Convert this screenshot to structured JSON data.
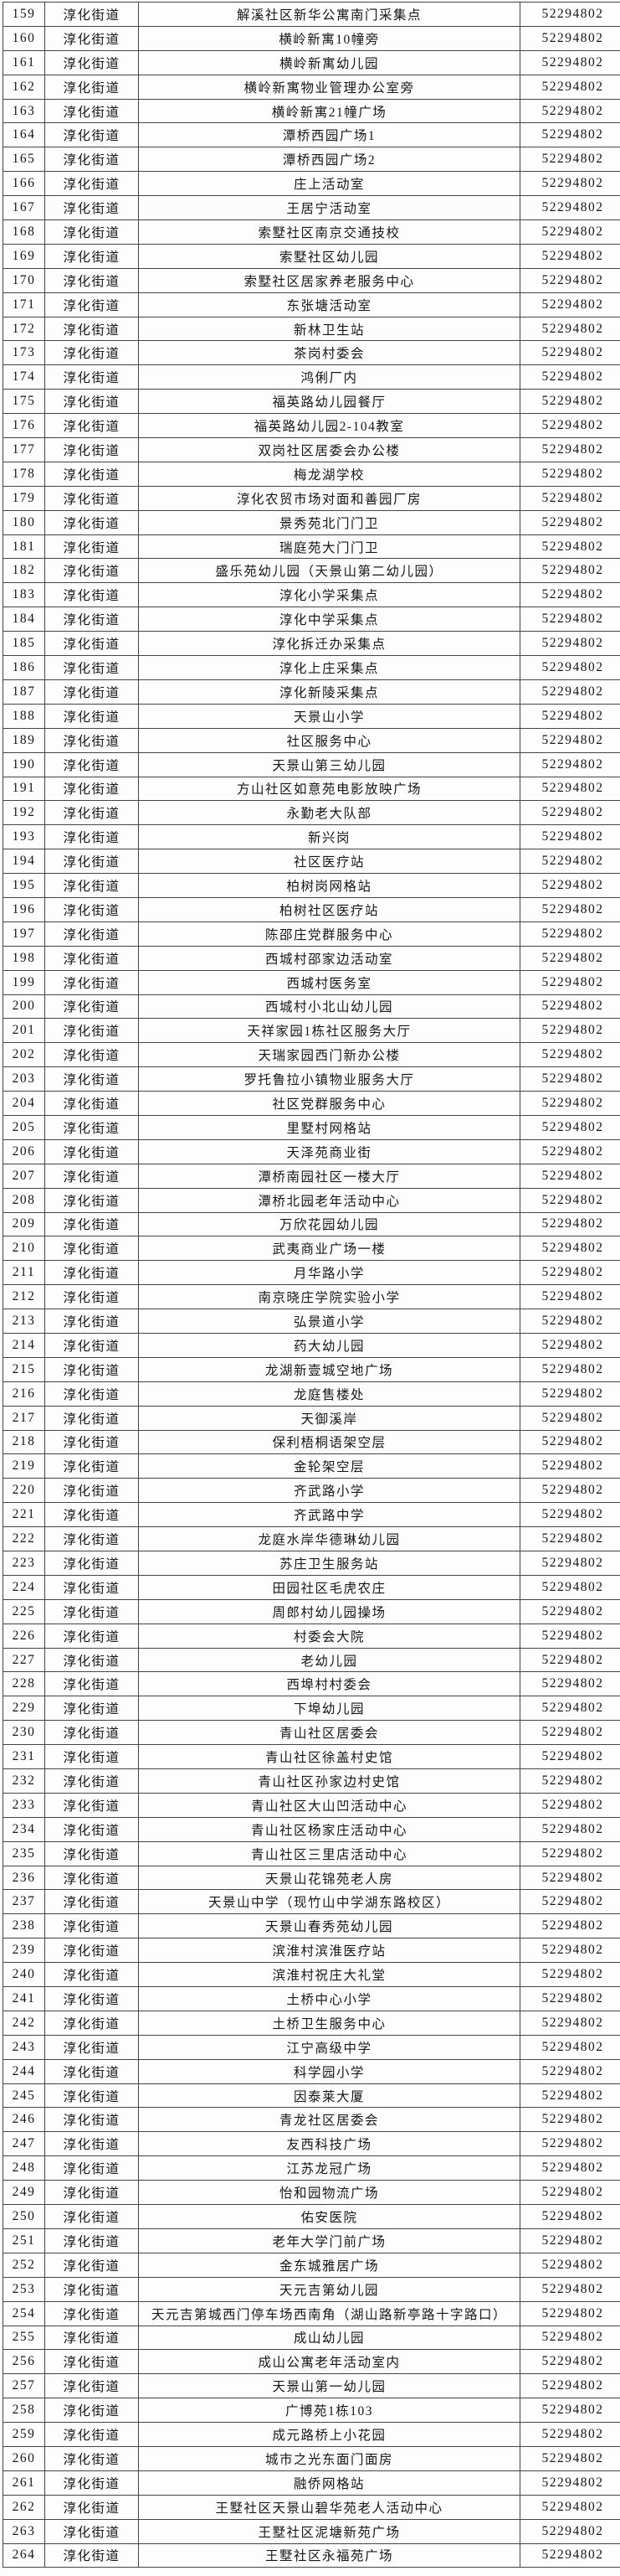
{
  "table": {
    "rows": [
      [
        "159",
        "淳化街道",
        "解溪社区新华公寓南门采集点",
        "52294802"
      ],
      [
        "160",
        "淳化街道",
        "横岭新寓10幢旁",
        "52294802"
      ],
      [
        "161",
        "淳化街道",
        "横岭新寓幼儿园",
        "52294802"
      ],
      [
        "162",
        "淳化街道",
        "横岭新寓物业管理办公室旁",
        "52294802"
      ],
      [
        "163",
        "淳化街道",
        "横岭新寓21幢广场",
        "52294802"
      ],
      [
        "164",
        "淳化街道",
        "潭桥西园广场1",
        "52294802"
      ],
      [
        "165",
        "淳化街道",
        "潭桥西园广场2",
        "52294802"
      ],
      [
        "166",
        "淳化街道",
        "庄上活动室",
        "52294802"
      ],
      [
        "167",
        "淳化街道",
        "王居宁活动室",
        "52294802"
      ],
      [
        "168",
        "淳化街道",
        "索墅社区南京交通技校",
        "52294802"
      ],
      [
        "169",
        "淳化街道",
        "索墅社区幼儿园",
        "52294802"
      ],
      [
        "170",
        "淳化街道",
        "索墅社区居家养老服务中心",
        "52294802"
      ],
      [
        "171",
        "淳化街道",
        "东张塘活动室",
        "52294802"
      ],
      [
        "172",
        "淳化街道",
        "新林卫生站",
        "52294802"
      ],
      [
        "173",
        "淳化街道",
        "茶岗村委会",
        "52294802"
      ],
      [
        "174",
        "淳化街道",
        "鸿俐厂内",
        "52294802"
      ],
      [
        "175",
        "淳化街道",
        "福英路幼儿园餐厅",
        "52294802"
      ],
      [
        "176",
        "淳化街道",
        "福英路幼儿园2-104教室",
        "52294802"
      ],
      [
        "177",
        "淳化街道",
        "双岗社区居委会办公楼",
        "52294802"
      ],
      [
        "178",
        "淳化街道",
        "梅龙湖学校",
        "52294802"
      ],
      [
        "179",
        "淳化街道",
        "淳化农贸市场对面和善园厂房",
        "52294802"
      ],
      [
        "180",
        "淳化街道",
        "景秀苑北门门卫",
        "52294802"
      ],
      [
        "181",
        "淳化街道",
        "瑞庭苑大门门卫",
        "52294802"
      ],
      [
        "182",
        "淳化街道",
        "盛乐苑幼儿园（天景山第二幼儿园）",
        "52294802"
      ],
      [
        "183",
        "淳化街道",
        "淳化小学采集点",
        "52294802"
      ],
      [
        "184",
        "淳化街道",
        "淳化中学采集点",
        "52294802"
      ],
      [
        "185",
        "淳化街道",
        "淳化拆迁办采集点",
        "52294802"
      ],
      [
        "186",
        "淳化街道",
        "淳化上庄采集点",
        "52294802"
      ],
      [
        "187",
        "淳化街道",
        "淳化新陵采集点",
        "52294802"
      ],
      [
        "188",
        "淳化街道",
        "天景山小学",
        "52294802"
      ],
      [
        "189",
        "淳化街道",
        "社区服务中心",
        "52294802"
      ],
      [
        "190",
        "淳化街道",
        "天景山第三幼儿园",
        "52294802"
      ],
      [
        "191",
        "淳化街道",
        "方山社区如意苑电影放映广场",
        "52294802"
      ],
      [
        "192",
        "淳化街道",
        "永勤老大队部",
        "52294802"
      ],
      [
        "193",
        "淳化街道",
        "新兴岗",
        "52294802"
      ],
      [
        "194",
        "淳化街道",
        "社区医疗站",
        "52294802"
      ],
      [
        "195",
        "淳化街道",
        "柏树岗网格站",
        "52294802"
      ],
      [
        "196",
        "淳化街道",
        "柏树社区医疗站",
        "52294802"
      ],
      [
        "197",
        "淳化街道",
        "陈邵庄党群服务中心",
        "52294802"
      ],
      [
        "198",
        "淳化街道",
        "西城村邵家边活动室",
        "52294802"
      ],
      [
        "199",
        "淳化街道",
        "西城村医务室",
        "52294802"
      ],
      [
        "200",
        "淳化街道",
        "西城村小北山幼儿园",
        "52294802"
      ],
      [
        "201",
        "淳化街道",
        "天祥家园1栋社区服务大厅",
        "52294802"
      ],
      [
        "202",
        "淳化街道",
        "天瑞家园西门新办公楼",
        "52294802"
      ],
      [
        "203",
        "淳化街道",
        "罗托鲁拉小镇物业服务大厅",
        "52294802"
      ],
      [
        "204",
        "淳化街道",
        "社区党群服务中心",
        "52294802"
      ],
      [
        "205",
        "淳化街道",
        "里墅村网格站",
        "52294802"
      ],
      [
        "206",
        "淳化街道",
        "天泽苑商业街",
        "52294802"
      ],
      [
        "207",
        "淳化街道",
        "潭桥南园社区一楼大厅",
        "52294802"
      ],
      [
        "208",
        "淳化街道",
        "潭桥北园老年活动中心",
        "52294802"
      ],
      [
        "209",
        "淳化街道",
        "万欣花园幼儿园",
        "52294802"
      ],
      [
        "210",
        "淳化街道",
        "武夷商业广场一楼",
        "52294802"
      ],
      [
        "211",
        "淳化街道",
        "月华路小学",
        "52294802"
      ],
      [
        "212",
        "淳化街道",
        "南京晓庄学院实验小学",
        "52294802"
      ],
      [
        "213",
        "淳化街道",
        "弘景道小学",
        "52294802"
      ],
      [
        "214",
        "淳化街道",
        "药大幼儿园",
        "52294802"
      ],
      [
        "215",
        "淳化街道",
        "龙湖新壹城空地广场",
        "52294802"
      ],
      [
        "216",
        "淳化街道",
        "龙庭售楼处",
        "52294802"
      ],
      [
        "217",
        "淳化街道",
        "天御溪岸",
        "52294802"
      ],
      [
        "218",
        "淳化街道",
        "保利梧桐语架空层",
        "52294802"
      ],
      [
        "219",
        "淳化街道",
        "金轮架空层",
        "52294802"
      ],
      [
        "220",
        "淳化街道",
        "齐武路小学",
        "52294802"
      ],
      [
        "221",
        "淳化街道",
        "齐武路中学",
        "52294802"
      ],
      [
        "222",
        "淳化街道",
        "龙庭水岸华德琳幼儿园",
        "52294802"
      ],
      [
        "223",
        "淳化街道",
        "苏庄卫生服务站",
        "52294802"
      ],
      [
        "224",
        "淳化街道",
        "田园社区毛虎农庄",
        "52294802"
      ],
      [
        "225",
        "淳化街道",
        "周郎村幼儿园操场",
        "52294802"
      ],
      [
        "226",
        "淳化街道",
        "村委会大院",
        "52294802"
      ],
      [
        "227",
        "淳化街道",
        "老幼儿园",
        "52294802"
      ],
      [
        "228",
        "淳化街道",
        "西埠村村委会",
        "52294802"
      ],
      [
        "229",
        "淳化街道",
        "下埠幼儿园",
        "52294802"
      ],
      [
        "230",
        "淳化街道",
        "青山社区居委会",
        "52294802"
      ],
      [
        "231",
        "淳化街道",
        "青山社区徐盖村史馆",
        "52294802"
      ],
      [
        "232",
        "淳化街道",
        "青山社区孙家边村史馆",
        "52294802"
      ],
      [
        "233",
        "淳化街道",
        "青山社区大山凹活动中心",
        "52294802"
      ],
      [
        "234",
        "淳化街道",
        "青山社区杨家庄活动中心",
        "52294802"
      ],
      [
        "235",
        "淳化街道",
        "青山社区三里店活动中心",
        "52294802"
      ],
      [
        "236",
        "淳化街道",
        "天景山花锦苑老人房",
        "52294802"
      ],
      [
        "237",
        "淳化街道",
        "天景山中学（现竹山中学湖东路校区）",
        "52294802"
      ],
      [
        "238",
        "淳化街道",
        "天景山春秀苑幼儿园",
        "52294802"
      ],
      [
        "239",
        "淳化街道",
        "滨淮村滨淮医疗站",
        "52294802"
      ],
      [
        "240",
        "淳化街道",
        "滨淮村祝庄大礼堂",
        "52294802"
      ],
      [
        "241",
        "淳化街道",
        "土桥中心小学",
        "52294802"
      ],
      [
        "242",
        "淳化街道",
        "土桥卫生服务中心",
        "52294802"
      ],
      [
        "243",
        "淳化街道",
        "江宁高级中学",
        "52294802"
      ],
      [
        "244",
        "淳化街道",
        "科学园小学",
        "52294802"
      ],
      [
        "245",
        "淳化街道",
        "因泰莱大厦",
        "52294802"
      ],
      [
        "246",
        "淳化街道",
        "青龙社区居委会",
        "52294802"
      ],
      [
        "247",
        "淳化街道",
        "友西科技广场",
        "52294802"
      ],
      [
        "248",
        "淳化街道",
        "江苏龙冠广场",
        "52294802"
      ],
      [
        "249",
        "淳化街道",
        "怡和园物流广场",
        "52294802"
      ],
      [
        "250",
        "淳化街道",
        "佑安医院",
        "52294802"
      ],
      [
        "251",
        "淳化街道",
        "老年大学门前广场",
        "52294802"
      ],
      [
        "252",
        "淳化街道",
        "金东城雅居广场",
        "52294802"
      ],
      [
        "253",
        "淳化街道",
        "天元吉第幼儿园",
        "52294802"
      ],
      [
        "254",
        "淳化街道",
        "天元吉第城西门停车场西南角（湖山路新亭路十字路口）",
        "52294802"
      ],
      [
        "255",
        "淳化街道",
        "成山幼儿园",
        "52294802"
      ],
      [
        "256",
        "淳化街道",
        "成山公寓老年活动室内",
        "52294802"
      ],
      [
        "257",
        "淳化街道",
        "天景山第一幼儿园",
        "52294802"
      ],
      [
        "258",
        "淳化街道",
        "广博苑1栋103",
        "52294802"
      ],
      [
        "259",
        "淳化街道",
        "成元路桥上小花园",
        "52294802"
      ],
      [
        "260",
        "淳化街道",
        "城市之光东面门面房",
        "52294802"
      ],
      [
        "261",
        "淳化街道",
        "融侨网格站",
        "52294802"
      ],
      [
        "262",
        "淳化街道",
        "王墅社区天景山碧华苑老人活动中心",
        "52294802"
      ],
      [
        "263",
        "淳化街道",
        "王墅社区泥塘新苑广场",
        "52294802"
      ],
      [
        "264",
        "淳化街道",
        "王墅社区永福苑广场",
        "52294802"
      ]
    ]
  }
}
